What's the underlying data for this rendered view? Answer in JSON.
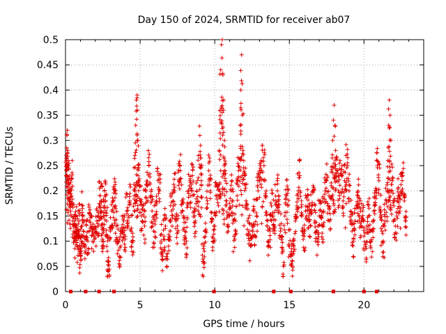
{
  "chart_data": {
    "type": "scatter",
    "title": "Day 150 of 2024, SRMTID for receiver ab07",
    "xlabel": "GPS time / hours",
    "ylabel": "SRMTID / TECUs",
    "xlim": [
      0,
      24
    ],
    "ylim": [
      0,
      0.5
    ],
    "x_ticks": [
      0,
      5,
      10,
      15,
      20
    ],
    "x_tick_labels": [
      "0",
      "5",
      "10",
      "15",
      "20"
    ],
    "y_ticks": [
      0,
      0.05,
      0.1,
      0.15,
      0.2,
      0.25,
      0.3,
      0.35,
      0.4,
      0.45,
      0.5
    ],
    "y_tick_labels": [
      "0",
      "0.05",
      "0.1",
      "0.15",
      "0.2",
      "0.25",
      "0.3",
      "0.35",
      "0.4",
      "0.45",
      "0.5"
    ],
    "grid": true,
    "marker": "+",
    "marker_color": "#e00000",
    "zero_markers_x": [
      0.35,
      1.35,
      2.25,
      3.25,
      9.95,
      13.95,
      15.1,
      17.95,
      20.0,
      20.85
    ],
    "series": [
      {
        "name": "SRMTID",
        "points": [
          [
            0.05,
            0.23
          ],
          [
            0.08,
            0.25
          ],
          [
            0.1,
            0.31
          ],
          [
            0.12,
            0.32
          ],
          [
            0.15,
            0.28
          ],
          [
            0.18,
            0.26
          ],
          [
            0.2,
            0.22
          ],
          [
            0.25,
            0.2
          ],
          [
            0.3,
            0.18
          ],
          [
            0.35,
            0.16
          ],
          [
            0.4,
            0.19
          ],
          [
            0.45,
            0.26
          ],
          [
            0.5,
            0.14
          ],
          [
            0.55,
            0.12
          ],
          [
            0.6,
            0.1
          ],
          [
            0.65,
            0.13
          ],
          [
            0.7,
            0.15
          ],
          [
            0.75,
            0.11
          ],
          [
            0.8,
            0.09
          ],
          [
            0.85,
            0.12
          ],
          [
            0.9,
            0.14
          ],
          [
            0.95,
            0.08
          ],
          [
            1.0,
            0.07
          ],
          [
            1.05,
            0.1
          ],
          [
            1.1,
            0.13
          ],
          [
            1.15,
            0.17
          ],
          [
            1.2,
            0.12
          ],
          [
            1.3,
            0.09
          ],
          [
            1.4,
            0.11
          ],
          [
            1.5,
            0.1
          ],
          [
            1.6,
            0.14
          ],
          [
            1.7,
            0.13
          ],
          [
            1.8,
            0.12
          ],
          [
            1.9,
            0.11
          ],
          [
            2.0,
            0.12
          ],
          [
            2.1,
            0.14
          ],
          [
            2.2,
            0.13
          ],
          [
            2.3,
            0.19
          ],
          [
            2.35,
            0.16
          ],
          [
            2.4,
            0.18
          ],
          [
            2.45,
            0.1
          ],
          [
            2.5,
            0.09
          ],
          [
            2.55,
            0.15
          ],
          [
            2.6,
            0.17
          ],
          [
            2.7,
            0.19
          ],
          [
            2.75,
            0.14
          ],
          [
            2.8,
            0.08
          ],
          [
            2.85,
            0.04
          ],
          [
            2.9,
            0.06
          ],
          [
            3.0,
            0.12
          ],
          [
            3.1,
            0.16
          ],
          [
            3.2,
            0.18
          ],
          [
            3.3,
            0.2
          ],
          [
            3.35,
            0.17
          ],
          [
            3.4,
            0.13
          ],
          [
            3.5,
            0.1
          ],
          [
            3.6,
            0.07
          ],
          [
            3.7,
            0.09
          ],
          [
            3.8,
            0.12
          ],
          [
            3.9,
            0.14
          ],
          [
            4.0,
            0.11
          ],
          [
            4.1,
            0.16
          ],
          [
            4.2,
            0.13
          ],
          [
            4.3,
            0.18
          ],
          [
            4.4,
            0.12
          ],
          [
            4.5,
            0.1
          ],
          [
            4.6,
            0.19
          ],
          [
            4.65,
            0.27
          ],
          [
            4.7,
            0.33
          ],
          [
            4.75,
            0.38
          ],
          [
            4.8,
            0.39
          ],
          [
            4.82,
            0.36
          ],
          [
            4.85,
            0.3
          ],
          [
            4.9,
            0.22
          ],
          [
            5.0,
            0.18
          ],
          [
            5.1,
            0.15
          ],
          [
            5.2,
            0.17
          ],
          [
            5.3,
            0.13
          ],
          [
            5.4,
            0.2
          ],
          [
            5.5,
            0.21
          ],
          [
            5.6,
            0.25
          ],
          [
            5.7,
            0.19
          ],
          [
            5.8,
            0.16
          ],
          [
            5.9,
            0.12
          ],
          [
            6.0,
            0.14
          ],
          [
            6.1,
            0.18
          ],
          [
            6.2,
            0.22
          ],
          [
            6.3,
            0.2
          ],
          [
            6.4,
            0.1
          ],
          [
            6.5,
            0.07
          ],
          [
            6.6,
            0.11
          ],
          [
            6.7,
            0.13
          ],
          [
            6.8,
            0.05
          ],
          [
            6.9,
            0.09
          ],
          [
            7.0,
            0.12
          ],
          [
            7.1,
            0.16
          ],
          [
            7.2,
            0.18
          ],
          [
            7.3,
            0.2
          ],
          [
            7.4,
            0.14
          ],
          [
            7.5,
            0.13
          ],
          [
            7.6,
            0.22
          ],
          [
            7.7,
            0.24
          ],
          [
            7.8,
            0.18
          ],
          [
            7.9,
            0.15
          ],
          [
            8.0,
            0.12
          ],
          [
            8.1,
            0.1
          ],
          [
            8.2,
            0.17
          ],
          [
            8.3,
            0.21
          ],
          [
            8.4,
            0.19
          ],
          [
            8.5,
            0.23
          ],
          [
            8.6,
            0.16
          ],
          [
            8.7,
            0.14
          ],
          [
            8.8,
            0.2
          ],
          [
            8.9,
            0.27
          ],
          [
            9.0,
            0.31
          ],
          [
            9.05,
            0.29
          ],
          [
            9.1,
            0.22
          ],
          [
            9.2,
            0.06
          ],
          [
            9.3,
            0.08
          ],
          [
            9.4,
            0.12
          ],
          [
            9.5,
            0.18
          ],
          [
            9.6,
            0.24
          ],
          [
            9.7,
            0.2
          ],
          [
            9.8,
            0.14
          ],
          [
            9.9,
            0.1
          ],
          [
            10.0,
            0.13
          ],
          [
            10.1,
            0.19
          ],
          [
            10.2,
            0.21
          ],
          [
            10.3,
            0.28
          ],
          [
            10.35,
            0.36
          ],
          [
            10.4,
            0.44
          ],
          [
            10.45,
            0.49
          ],
          [
            10.5,
            0.5
          ],
          [
            10.55,
            0.43
          ],
          [
            10.6,
            0.38
          ],
          [
            10.65,
            0.3
          ],
          [
            10.7,
            0.22
          ],
          [
            10.8,
            0.18
          ],
          [
            10.9,
            0.12
          ],
          [
            11.0,
            0.15
          ],
          [
            11.1,
            0.2
          ],
          [
            11.2,
            0.17
          ],
          [
            11.3,
            0.11
          ],
          [
            11.4,
            0.14
          ],
          [
            11.5,
            0.19
          ],
          [
            11.6,
            0.24
          ],
          [
            11.7,
            0.33
          ],
          [
            11.75,
            0.4
          ],
          [
            11.8,
            0.47
          ],
          [
            11.85,
            0.35
          ],
          [
            11.9,
            0.28
          ],
          [
            12.0,
            0.23
          ],
          [
            12.1,
            0.18
          ],
          [
            12.2,
            0.14
          ],
          [
            12.3,
            0.12
          ],
          [
            12.4,
            0.09
          ],
          [
            12.5,
            0.13
          ],
          [
            12.6,
            0.16
          ],
          [
            12.7,
            0.11
          ],
          [
            12.8,
            0.15
          ],
          [
            12.9,
            0.2
          ],
          [
            13.0,
            0.22
          ],
          [
            13.1,
            0.26
          ],
          [
            13.2,
            0.29
          ],
          [
            13.3,
            0.25
          ],
          [
            13.4,
            0.19
          ],
          [
            13.5,
            0.13
          ],
          [
            13.6,
            0.1
          ],
          [
            13.7,
            0.12
          ],
          [
            13.8,
            0.17
          ],
          [
            13.9,
            0.15
          ],
          [
            14.0,
            0.13
          ],
          [
            14.1,
            0.18
          ],
          [
            14.2,
            0.2
          ],
          [
            14.3,
            0.16
          ],
          [
            14.4,
            0.12
          ],
          [
            14.5,
            0.11
          ],
          [
            14.6,
            0.05
          ],
          [
            14.7,
            0.15
          ],
          [
            14.8,
            0.19
          ],
          [
            14.9,
            0.17
          ],
          [
            15.0,
            0.09
          ],
          [
            15.1,
            0.07
          ],
          [
            15.2,
            0.06
          ],
          [
            15.3,
            0.08
          ],
          [
            15.4,
            0.14
          ],
          [
            15.5,
            0.17
          ],
          [
            15.6,
            0.2
          ],
          [
            15.7,
            0.23
          ],
          [
            15.8,
            0.18
          ],
          [
            15.9,
            0.12
          ],
          [
            16.0,
            0.11
          ],
          [
            16.1,
            0.16
          ],
          [
            16.2,
            0.19
          ],
          [
            16.3,
            0.15
          ],
          [
            16.4,
            0.13
          ],
          [
            16.5,
            0.17
          ],
          [
            16.6,
            0.2
          ],
          [
            16.7,
            0.14
          ],
          [
            16.8,
            0.12
          ],
          [
            16.9,
            0.1
          ],
          [
            17.0,
            0.15
          ],
          [
            17.1,
            0.18
          ],
          [
            17.2,
            0.13
          ],
          [
            17.3,
            0.16
          ],
          [
            17.4,
            0.2
          ],
          [
            17.5,
            0.22
          ],
          [
            17.6,
            0.17
          ],
          [
            17.7,
            0.14
          ],
          [
            17.8,
            0.21
          ],
          [
            17.9,
            0.3
          ],
          [
            17.95,
            0.34
          ],
          [
            18.0,
            0.37
          ],
          [
            18.05,
            0.33
          ],
          [
            18.1,
            0.28
          ],
          [
            18.2,
            0.24
          ],
          [
            18.3,
            0.2
          ],
          [
            18.4,
            0.26
          ],
          [
            18.5,
            0.23
          ],
          [
            18.6,
            0.18
          ],
          [
            18.7,
            0.22
          ],
          [
            18.8,
            0.27
          ],
          [
            18.9,
            0.25
          ],
          [
            19.0,
            0.2
          ],
          [
            19.1,
            0.16
          ],
          [
            19.2,
            0.12
          ],
          [
            19.3,
            0.1
          ],
          [
            19.4,
            0.14
          ],
          [
            19.5,
            0.17
          ],
          [
            19.6,
            0.19
          ],
          [
            19.7,
            0.15
          ],
          [
            19.8,
            0.13
          ],
          [
            19.9,
            0.16
          ],
          [
            20.0,
            0.11
          ],
          [
            20.1,
            0.09
          ],
          [
            20.2,
            0.13
          ],
          [
            20.3,
            0.15
          ],
          [
            20.4,
            0.12
          ],
          [
            20.5,
            0.1
          ],
          [
            20.6,
            0.14
          ],
          [
            20.7,
            0.17
          ],
          [
            20.8,
            0.19
          ],
          [
            20.9,
            0.25
          ],
          [
            21.0,
            0.22
          ],
          [
            21.1,
            0.16
          ],
          [
            21.2,
            0.12
          ],
          [
            21.3,
            0.1
          ],
          [
            21.4,
            0.14
          ],
          [
            21.5,
            0.18
          ],
          [
            21.6,
            0.26
          ],
          [
            21.65,
            0.33
          ],
          [
            21.7,
            0.38
          ],
          [
            21.75,
            0.35
          ],
          [
            21.8,
            0.3
          ],
          [
            21.9,
            0.22
          ],
          [
            22.0,
            0.17
          ],
          [
            22.1,
            0.13
          ],
          [
            22.2,
            0.15
          ],
          [
            22.3,
            0.19
          ],
          [
            22.4,
            0.16
          ],
          [
            22.5,
            0.2
          ],
          [
            22.6,
            0.23
          ],
          [
            22.7,
            0.18
          ],
          [
            22.8,
            0.14
          ]
        ]
      }
    ]
  }
}
